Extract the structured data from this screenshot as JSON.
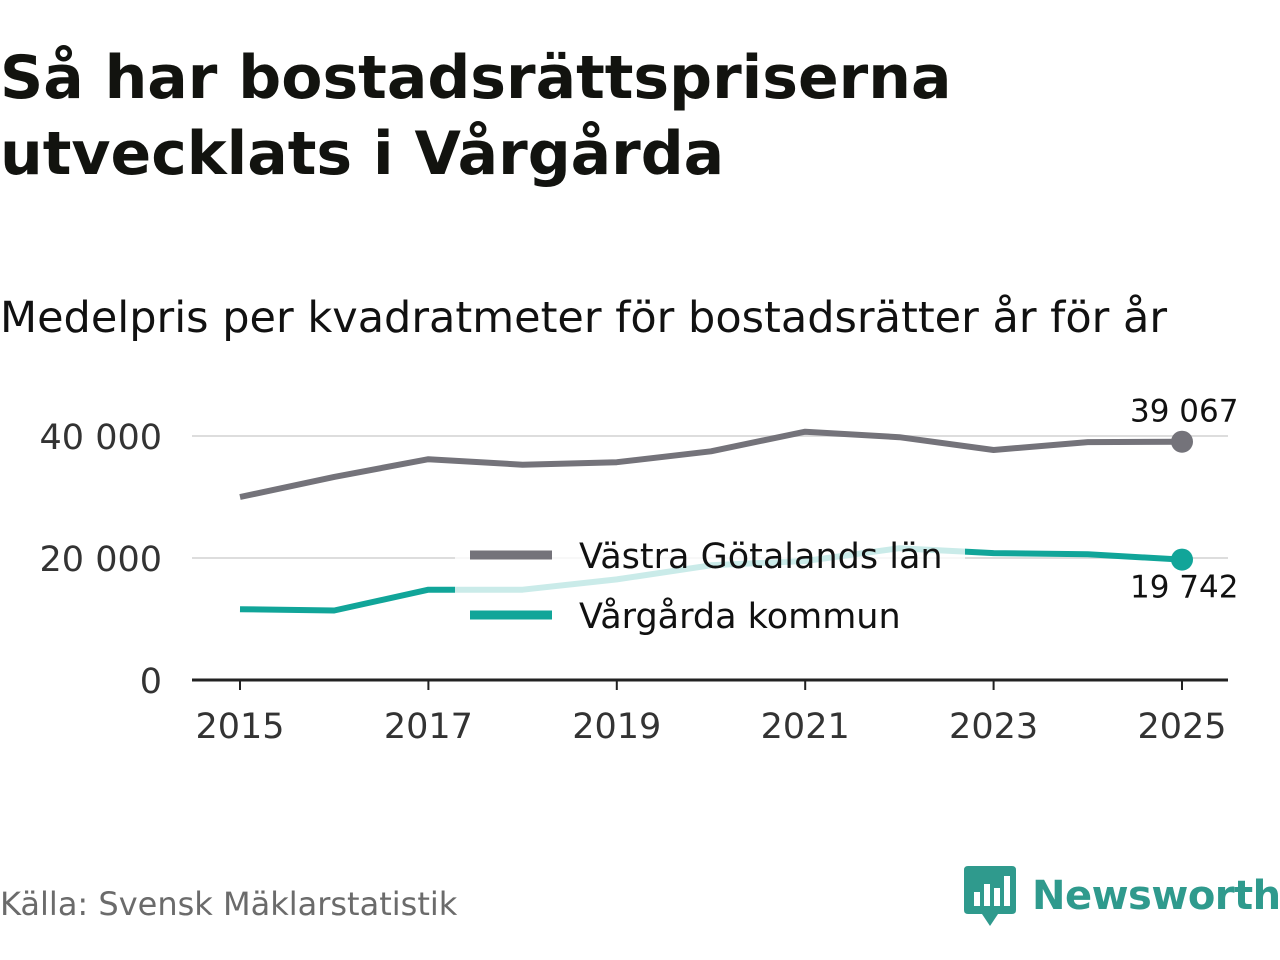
{
  "title": "Så har bostadsrättspriserna utvecklats i Vårgårda",
  "subtitle": "Medelpris per kvadratmeter för bostadsrätter år för år",
  "source": "Källa: Svensk Mäklarstatistik",
  "brand": {
    "name": "Newsworthy",
    "icon": "newsworthy-chart-icon",
    "color": "#2f9a8d"
  },
  "chart_data": {
    "type": "line",
    "title": "Medelpris per kvadratmeter för bostadsrätter år för år",
    "xlabel": "",
    "ylabel": "",
    "x": [
      2015,
      2016,
      2017,
      2018,
      2019,
      2020,
      2021,
      2022,
      2023,
      2024,
      2025
    ],
    "x_tick_labels": [
      "2015",
      "2017",
      "2019",
      "2021",
      "2023",
      "2025"
    ],
    "x_ticks": [
      2015,
      2017,
      2019,
      2021,
      2023,
      2025
    ],
    "y_tick_labels": [
      "0",
      "20 000",
      "40 000"
    ],
    "y_ticks": [
      0,
      20000,
      40000
    ],
    "ylim": [
      0,
      42000
    ],
    "xlim": [
      2014.5,
      2025.5
    ],
    "grid": true,
    "legend_position": "center",
    "series": [
      {
        "name": "Västra Götalands län",
        "color": "#74737a",
        "values": [
          30000,
          33300,
          36200,
          35300,
          35700,
          37500,
          40700,
          39800,
          37700,
          39000,
          39067
        ],
        "end_label": "39 067"
      },
      {
        "name": "Vårgårda kommun",
        "color": "#11a599",
        "values": [
          11600,
          11400,
          14800,
          14800,
          16500,
          18800,
          19500,
          21600,
          20800,
          20600,
          19742
        ],
        "end_label": "19 742"
      }
    ]
  }
}
